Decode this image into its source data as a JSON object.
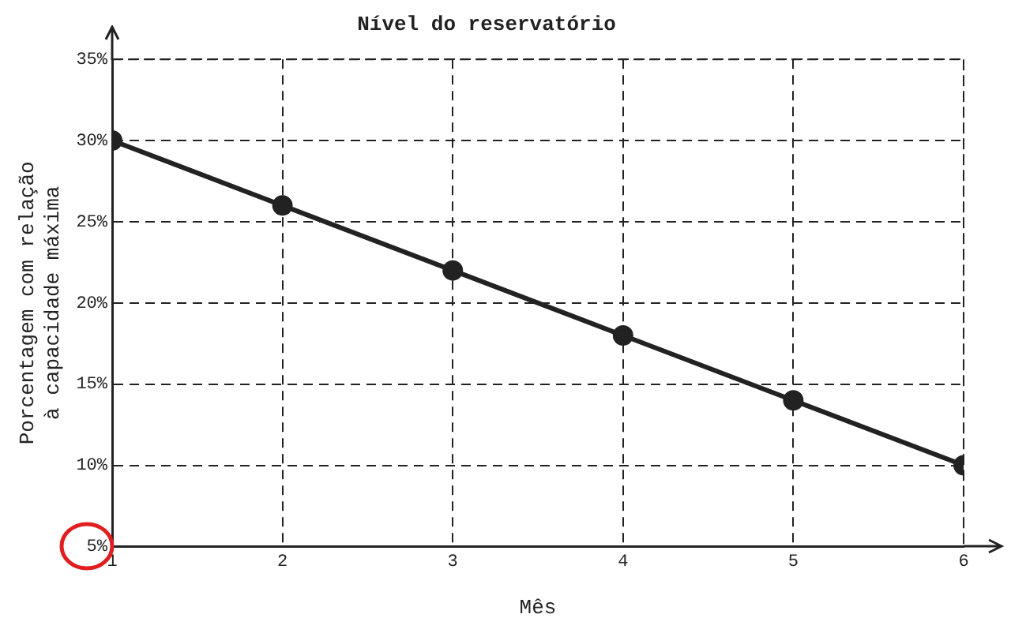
{
  "chart_data": {
    "type": "line",
    "title": "Nível do reservatório",
    "xlabel": "Mês",
    "ylabel": "Porcentagem com relação\nà capacidade máxima",
    "x": [
      1,
      2,
      3,
      4,
      5,
      6
    ],
    "series": [
      {
        "color": "#222222",
        "values": [
          30,
          26,
          22,
          18,
          14,
          10
        ]
      }
    ],
    "xlim": [
      1,
      6
    ],
    "xticks": [
      1,
      2,
      3,
      4,
      5,
      6
    ],
    "ylim": [
      5,
      35
    ],
    "yticks": [
      {
        "value": 5,
        "label": "5%"
      },
      {
        "value": 10,
        "label": "10%"
      },
      {
        "value": 15,
        "label": "15%"
      },
      {
        "value": 20,
        "label": "20%"
      },
      {
        "value": 25,
        "label": "25%"
      },
      {
        "value": 30,
        "label": "30%"
      },
      {
        "value": 35,
        "label": "35%"
      }
    ],
    "grid": true,
    "legend": false,
    "marker": "circle",
    "line_style": "solid"
  }
}
